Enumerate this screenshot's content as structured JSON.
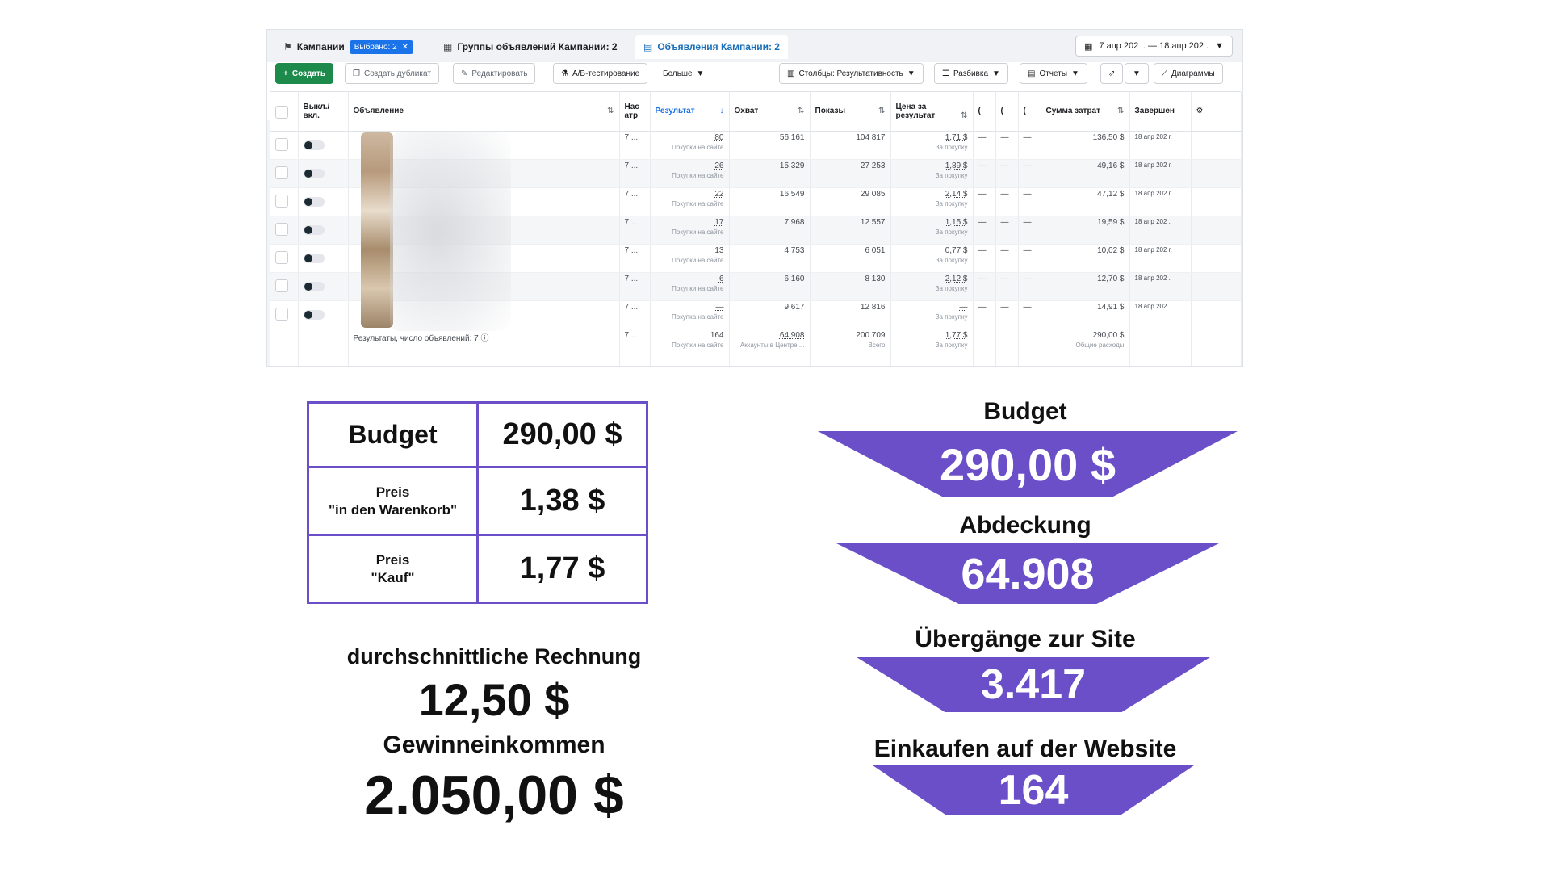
{
  "ads_manager": {
    "tabs": {
      "campaigns": "Кампании",
      "selected_chip": "Выбрано: 2",
      "adsets": "Группы объявлений Кампании: 2",
      "ads": "Объявления Кампании: 2"
    },
    "date_range": "7 апр 202  г. — 18 апр 202  .",
    "toolbar": {
      "create": "Создать",
      "duplicate": "Создать дубликат",
      "edit": "Редактировать",
      "ab_test": "A/B-тестирование",
      "more": "Больше",
      "columns": "Столбцы: Результативность",
      "breakdown": "Разбивка",
      "reports": "Отчеты",
      "charts": "Диаграммы"
    },
    "columns": {
      "toggle": "Выкл./вкл.",
      "ad": "Объявление",
      "attribution": "Нас атр",
      "result": "Результат",
      "reach": "Охват",
      "impressions": "Показы",
      "cost_per_result": "Цена за результат",
      "c1": "(",
      "c2": "(",
      "c3": "(",
      "spend": "Сумма затрат",
      "ends": "Завершен"
    },
    "rows": [
      {
        "attr": "7 ...",
        "result": "80",
        "result_sub": "Покупки на сайте",
        "reach": "56 161",
        "impr": "104 817",
        "cpr": "1,71 $",
        "cpr_sub": "За покупку",
        "d1": "—",
        "d2": "—",
        "d3": "—",
        "spend": "136,50 $",
        "ends": "18 апр 202  г."
      },
      {
        "attr": "7 ...",
        "result": "26",
        "result_sub": "Покупки на сайте",
        "reach": "15 329",
        "impr": "27 253",
        "cpr": "1,89 $",
        "cpr_sub": "За покупку",
        "d1": "—",
        "d2": "—",
        "d3": "—",
        "spend": "49,16 $",
        "ends": "18 апр 202  г."
      },
      {
        "attr": "7 ...",
        "result": "22",
        "result_sub": "Покупки на сайте",
        "reach": "16 549",
        "impr": "29 085",
        "cpr": "2,14 $",
        "cpr_sub": "За покупку",
        "d1": "—",
        "d2": "—",
        "d3": "—",
        "spend": "47,12 $",
        "ends": "18 апр 202  г."
      },
      {
        "attr": "7 ...",
        "result": "17",
        "result_sub": "Покупки на сайте",
        "reach": "7 968",
        "impr": "12 557",
        "cpr": "1,15 $",
        "cpr_sub": "За покупку",
        "d1": "—",
        "d2": "—",
        "d3": "—",
        "spend": "19,59 $",
        "ends": "18 апр 202  ."
      },
      {
        "attr": "7 ...",
        "result": "13",
        "result_sub": "Покупки на сайте",
        "reach": "4 753",
        "impr": "6 051",
        "cpr": "0,77 $",
        "cpr_sub": "За покупку",
        "d1": "—",
        "d2": "—",
        "d3": "—",
        "spend": "10,02 $",
        "ends": "18 апр 202  г."
      },
      {
        "attr": "7 ...",
        "result": "6",
        "result_sub": "Покупки на сайте",
        "reach": "6 160",
        "impr": "8 130",
        "cpr": "2,12 $",
        "cpr_sub": "За покупку",
        "d1": "—",
        "d2": "—",
        "d3": "—",
        "spend": "12,70 $",
        "ends": "18 апр 202  ."
      },
      {
        "attr": "7 ...",
        "result": "—",
        "result_sub": "Покупка на сайте",
        "reach": "9 617",
        "impr": "12 816",
        "cpr": "—",
        "cpr_sub": "За покупку",
        "d1": "—",
        "d2": "—",
        "d3": "—",
        "spend": "14,91 $",
        "ends": "18 апр 202  ."
      }
    ],
    "total": {
      "label": "Результаты, число объявлений: 7",
      "attr": "7 ...",
      "result": "164",
      "result_sub": "Покупки на сайте",
      "reach": "64 908",
      "reach_sub": "Аккаунты в Центре ...",
      "impr": "200 709",
      "impr_sub": "Всего",
      "cpr": "1,77 $",
      "cpr_sub": "За покупку",
      "spend": "290,00 $",
      "spend_sub": "Общие расходы"
    }
  },
  "summary": {
    "budget_label": "Budget",
    "budget_value": "290,00 $",
    "cart_price_label": "Preis\n\"in den Warenkorb\"",
    "cart_price_value": "1,38 $",
    "buy_price_label": "Preis\n\"Kauf\"",
    "buy_price_value": "1,77 $",
    "avg_check_label": "durchschnittliche Rechnung",
    "avg_check_value": "12,50 $",
    "profit_label": "Gewinneinkommen",
    "profit_value": "2.050,00 $"
  },
  "funnel": [
    {
      "label": "Budget",
      "value": "290,00 $"
    },
    {
      "label": "Abdeckung",
      "value": "64.908"
    },
    {
      "label": "Übergänge zur Site",
      "value": "3.417"
    },
    {
      "label": "Einkaufen auf der Website",
      "value": "164"
    }
  ],
  "colors": {
    "accent": "#6a4fc9",
    "fb_blue": "#1a73e8",
    "create_green": "#1b8a4a"
  }
}
